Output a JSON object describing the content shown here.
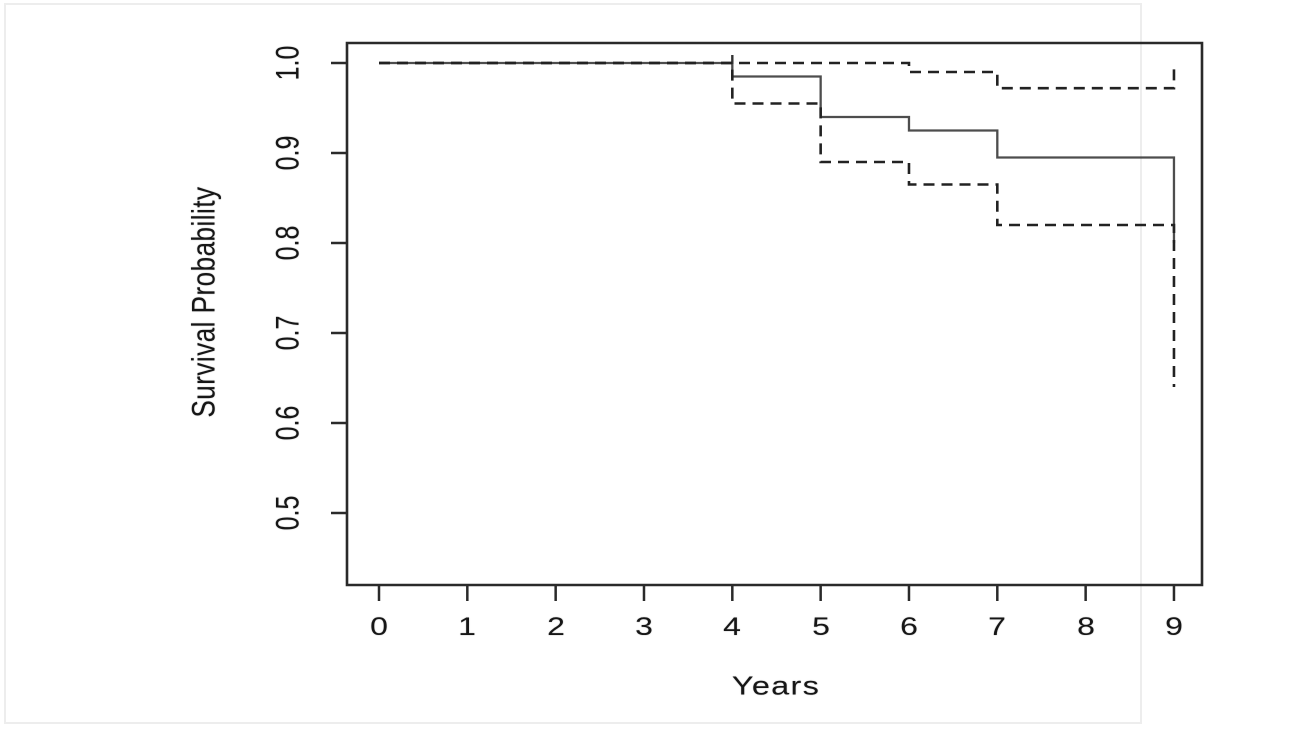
{
  "chart_data": {
    "type": "line",
    "subtype": "kaplan_meier_step_with_confidence_bands",
    "title": "",
    "xlabel": "Years",
    "ylabel": "Survival Probability",
    "grid": false,
    "legend": "none",
    "x_axis": {
      "ticks": [
        0,
        1,
        2,
        3,
        4,
        5,
        6,
        7,
        8,
        9
      ],
      "tick_labels": [
        "0",
        "1",
        "2",
        "3",
        "4",
        "5",
        "6",
        "7",
        "8",
        "9"
      ],
      "range_displayed": [
        0,
        9
      ]
    },
    "y_axis": {
      "ticks": [
        1.0,
        0.9,
        0.8,
        0.7,
        0.6,
        0.5
      ],
      "tick_labels": [
        "1.0",
        "0.9",
        "0.8",
        "0.7",
        "0.6",
        "0.5"
      ],
      "range_displayed": [
        0.5,
        1.0
      ]
    },
    "series": [
      {
        "name": "survival_estimate",
        "line_style": "solid",
        "start": {
          "time": 0,
          "value": 1.0
        },
        "steps": [
          {
            "time": 4,
            "value": 0.985
          },
          {
            "time": 5,
            "value": 0.94
          },
          {
            "time": 6,
            "value": 0.925
          },
          {
            "time": 7,
            "value": 0.895
          },
          {
            "time": 9,
            "value": 0.8
          }
        ],
        "tick_marks": [
          {
            "time": 4,
            "value": 1.0
          }
        ]
      },
      {
        "name": "upper_95_ci",
        "line_style": "dashed",
        "start": {
          "time": 0,
          "value": 1.0
        },
        "steps": [
          {
            "time": 6,
            "value": 0.99
          },
          {
            "time": 7,
            "value": 0.972
          }
        ],
        "end_tick": {
          "time": 9,
          "from": 0.972,
          "to": 0.996
        }
      },
      {
        "name": "lower_95_ci",
        "line_style": "dashed",
        "start": {
          "time": 0,
          "value": 1.0
        },
        "steps": [
          {
            "time": 4,
            "value": 0.955
          },
          {
            "time": 5,
            "value": 0.89
          },
          {
            "time": 6,
            "value": 0.865
          },
          {
            "time": 7,
            "value": 0.82
          },
          {
            "time": 9,
            "value": 0.64
          }
        ]
      }
    ]
  }
}
